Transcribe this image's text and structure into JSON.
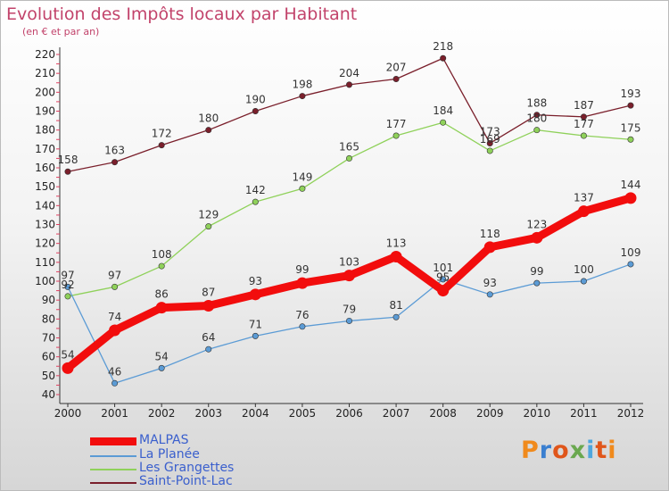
{
  "title": "Evolution des Impôts locaux par Habitant",
  "subtitle": "(en € et par an)",
  "brand": {
    "text": "Proxiti",
    "colors": [
      "#f08a1c",
      "#3a7fd0",
      "#e0561b",
      "#6aa84f",
      "#4fa6dd",
      "#e0561b",
      "#f08a1c"
    ]
  },
  "chart_data": {
    "type": "line",
    "categories": [
      "2000",
      "2001",
      "2002",
      "2003",
      "2004",
      "2005",
      "2006",
      "2007",
      "2008",
      "2009",
      "2010",
      "2011",
      "2012"
    ],
    "ylim": [
      40,
      220
    ],
    "yticks": [
      40,
      50,
      60,
      70,
      80,
      90,
      100,
      110,
      120,
      130,
      140,
      150,
      160,
      170,
      180,
      190,
      200,
      210,
      220
    ],
    "grid": false,
    "legend_position": "bottom-left",
    "series": [
      {
        "name": "Saint-Point-Lac",
        "color": "#7a1f2b",
        "values": [
          158,
          163,
          172,
          180,
          190,
          198,
          204,
          207,
          218,
          173,
          188,
          187,
          193
        ]
      },
      {
        "name": "Les Grangettes",
        "color": "#8fd15a",
        "values": [
          92,
          97,
          108,
          129,
          142,
          149,
          165,
          177,
          184,
          169,
          180,
          177,
          175
        ]
      },
      {
        "name": "La Planée",
        "color": "#5b9bd5",
        "values": [
          97,
          46,
          54,
          64,
          71,
          76,
          79,
          81,
          101,
          93,
          99,
          100,
          109
        ]
      },
      {
        "name": "MALPAS",
        "color": "#f20d0d",
        "values": [
          54,
          74,
          86,
          87,
          93,
          99,
          103,
          113,
          95,
          118,
          123,
          137,
          144
        ]
      }
    ],
    "data_labels": [
      [
        "158",
        "163",
        "172",
        "180",
        "190",
        "198",
        "204",
        "207",
        "218",
        "173",
        "188",
        "187",
        "193"
      ],
      [
        "92",
        "97",
        "108",
        "129",
        "142",
        "149",
        "165",
        "177",
        "184",
        "169",
        "180",
        "177",
        "175"
      ],
      [
        "97",
        "46",
        "54",
        "64",
        "71",
        "76",
        "79",
        "81",
        "101",
        "93",
        "99",
        "100",
        "109"
      ],
      [
        "54",
        "74",
        "86",
        "87",
        "93",
        "99",
        "103",
        "113",
        "95",
        "118",
        "123",
        "137",
        "144"
      ]
    ]
  },
  "legend": [
    {
      "label": "MALPAS",
      "color": "#f20d0d"
    },
    {
      "label": "La Planée",
      "color": "#5b9bd5"
    },
    {
      "label": "Les Grangettes",
      "color": "#8fd15a"
    },
    {
      "label": "Saint-Point-Lac",
      "color": "#7a1f2b"
    }
  ]
}
